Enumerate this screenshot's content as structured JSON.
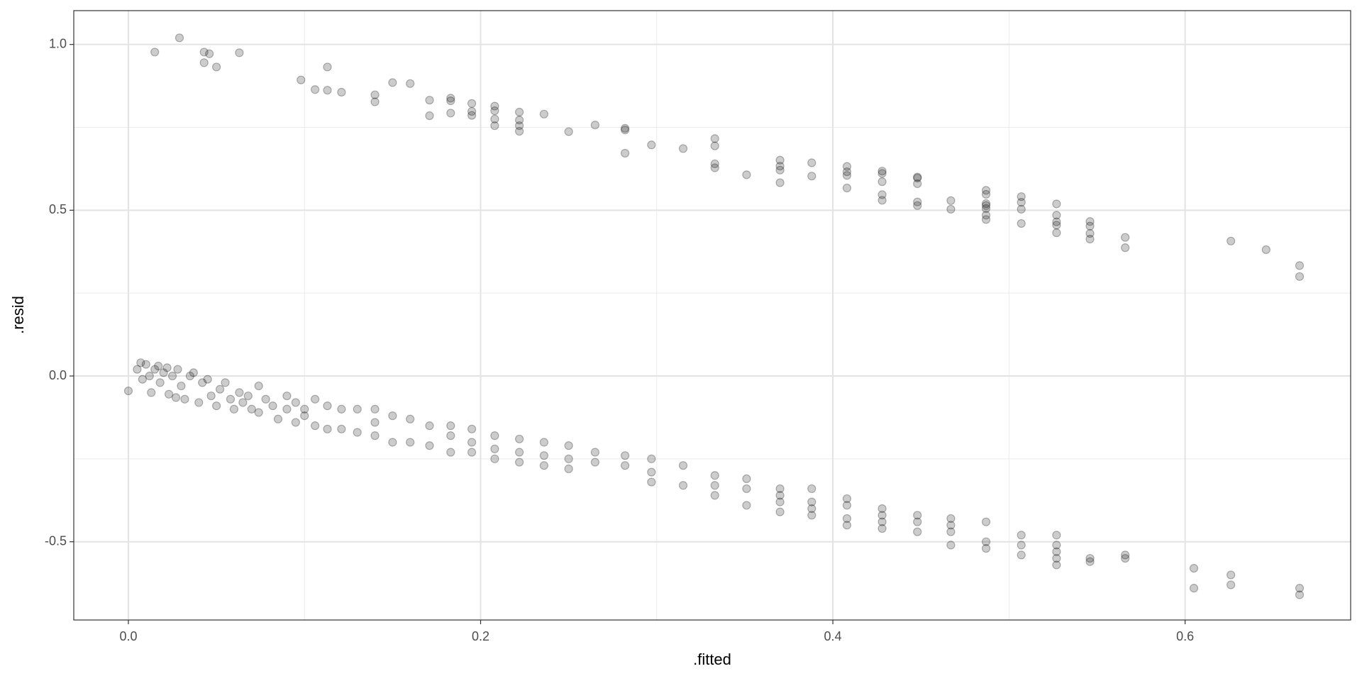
{
  "chart_data": {
    "type": "scatter",
    "x_label": ".fitted",
    "y_label": ".resid",
    "xlim": [
      -0.031,
      0.694
    ],
    "ylim": [
      -0.736,
      1.102
    ],
    "xticks": [
      {
        "value": 0,
        "label": "0.0"
      },
      0.2,
      0.4,
      0.6
    ],
    "yticks": [
      {
        "value": -0.5,
        "label": "-0.5"
      },
      {
        "value": 0,
        "label": "0.0"
      },
      0.5,
      {
        "value": 1,
        "label": "1.0"
      }
    ],
    "x_minor_ticks": [
      0.1,
      0.3,
      0.5
    ],
    "y_minor_ticks": [
      -0.25,
      0.25,
      0.75
    ],
    "grid": true,
    "color": "#000000",
    "x": [
      0.015,
      0.029,
      0.043,
      0.043,
      0.046,
      0.05,
      0.063,
      0.098,
      0.106,
      0.113,
      0.113,
      0.121,
      0.14,
      0.14,
      0.15,
      0.16,
      0.171,
      0.171,
      0.183,
      0.183,
      0.183,
      0.195,
      0.195,
      0.195,
      0.208,
      0.208,
      0.208,
      0.208,
      0.222,
      0.222,
      0.222,
      0.222,
      0.236,
      0.25,
      0.265,
      0.282,
      0.282,
      0.282,
      0.297,
      0.315,
      0.333,
      0.333,
      0.333,
      0.333,
      0.351,
      0.37,
      0.37,
      0.37,
      0.37,
      0.388,
      0.388,
      0.408,
      0.408,
      0.408,
      0.408,
      0.428,
      0.428,
      0.428,
      0.428,
      0.428,
      0.448,
      0.448,
      0.448,
      0.448,
      0.448,
      0.467,
      0.467,
      0.487,
      0.487,
      0.487,
      0.487,
      0.487,
      0.487,
      0.487,
      0.507,
      0.507,
      0.507,
      0.507,
      0.527,
      0.527,
      0.527,
      0.527,
      0.527,
      0.546,
      0.546,
      0.546,
      0.546,
      0.566,
      0.566,
      0.626,
      0.646,
      0.665,
      0.665,
      0,
      0.005,
      0.007,
      0.008,
      0.01,
      0.012,
      0.013,
      0.015,
      0.017,
      0.018,
      0.02,
      0.022,
      0.023,
      0.025,
      0.027,
      0.028,
      0.03,
      0.032,
      0.035,
      0.037,
      0.04,
      0.042,
      0.045,
      0.047,
      0.05,
      0.052,
      0.055,
      0.058,
      0.06,
      0.063,
      0.065,
      0.068,
      0.07,
      0.074,
      0.074,
      0.078,
      0.082,
      0.085,
      0.09,
      0.09,
      0.095,
      0.095,
      0.1,
      0.1,
      0.106,
      0.106,
      0.113,
      0.113,
      0.121,
      0.121,
      0.13,
      0.13,
      0.14,
      0.14,
      0.14,
      0.15,
      0.15,
      0.16,
      0.16,
      0.171,
      0.171,
      0.183,
      0.183,
      0.183,
      0.195,
      0.195,
      0.195,
      0.208,
      0.208,
      0.208,
      0.222,
      0.222,
      0.222,
      0.236,
      0.236,
      0.236,
      0.25,
      0.25,
      0.25,
      0.265,
      0.265,
      0.282,
      0.282,
      0.297,
      0.297,
      0.297,
      0.315,
      0.315,
      0.333,
      0.333,
      0.333,
      0.351,
      0.351,
      0.351,
      0.37,
      0.37,
      0.37,
      0.37,
      0.388,
      0.388,
      0.388,
      0.388,
      0.408,
      0.408,
      0.408,
      0.408,
      0.428,
      0.428,
      0.428,
      0.428,
      0.448,
      0.448,
      0.448,
      0.467,
      0.467,
      0.467,
      0.467,
      0.487,
      0.487,
      0.487,
      0.507,
      0.507,
      0.507,
      0.527,
      0.527,
      0.527,
      0.527,
      0.527,
      0.546,
      0.546,
      0.566,
      0.566,
      0.605,
      0.605,
      0.626,
      0.626,
      0.665,
      0.665
    ],
    "values": [
      0.977,
      1.02,
      0.977,
      0.945,
      0.972,
      0.932,
      0.975,
      0.893,
      0.864,
      0.932,
      0.862,
      0.856,
      0.848,
      0.827,
      0.885,
      0.882,
      0.832,
      0.785,
      0.838,
      0.83,
      0.793,
      0.822,
      0.798,
      0.786,
      0.814,
      0.8,
      0.775,
      0.755,
      0.796,
      0.772,
      0.755,
      0.738,
      0.79,
      0.737,
      0.757,
      0.747,
      0.742,
      0.672,
      0.697,
      0.686,
      0.716,
      0.694,
      0.64,
      0.628,
      0.607,
      0.651,
      0.633,
      0.621,
      0.583,
      0.643,
      0.603,
      0.632,
      0.616,
      0.605,
      0.567,
      0.618,
      0.611,
      0.586,
      0.547,
      0.53,
      0.6,
      0.597,
      0.58,
      0.525,
      0.514,
      0.529,
      0.503,
      0.56,
      0.548,
      0.52,
      0.514,
      0.505,
      0.485,
      0.472,
      0.541,
      0.524,
      0.503,
      0.46,
      0.519,
      0.485,
      0.465,
      0.455,
      0.432,
      0.466,
      0.452,
      0.43,
      0.413,
      0.418,
      0.387,
      0.407,
      0.381,
      0.333,
      0.3,
      -0.045,
      0.02,
      0.04,
      -0.01,
      0.035,
      0.0,
      -0.05,
      0.02,
      0.03,
      -0.02,
      0.01,
      0.025,
      -0.055,
      0.0,
      -0.065,
      0.02,
      -0.03,
      -0.07,
      0.0,
      0.01,
      -0.08,
      -0.02,
      -0.01,
      -0.06,
      -0.09,
      -0.04,
      -0.02,
      -0.07,
      -0.1,
      -0.05,
      -0.08,
      -0.06,
      -0.1,
      -0.03,
      -0.11,
      -0.07,
      -0.09,
      -0.13,
      -0.06,
      -0.1,
      -0.08,
      -0.14,
      -0.1,
      -0.12,
      -0.07,
      -0.15,
      -0.09,
      -0.16,
      -0.1,
      -0.16,
      -0.1,
      -0.17,
      -0.1,
      -0.14,
      -0.18,
      -0.12,
      -0.2,
      -0.13,
      -0.2,
      -0.15,
      -0.21,
      -0.15,
      -0.18,
      -0.23,
      -0.16,
      -0.2,
      -0.23,
      -0.18,
      -0.22,
      -0.25,
      -0.19,
      -0.23,
      -0.26,
      -0.2,
      -0.24,
      -0.27,
      -0.21,
      -0.25,
      -0.28,
      -0.23,
      -0.26,
      -0.24,
      -0.27,
      -0.25,
      -0.29,
      -0.32,
      -0.27,
      -0.33,
      -0.3,
      -0.33,
      -0.36,
      -0.31,
      -0.34,
      -0.39,
      -0.34,
      -0.36,
      -0.38,
      -0.41,
      -0.34,
      -0.38,
      -0.4,
      -0.42,
      -0.37,
      -0.39,
      -0.43,
      -0.45,
      -0.4,
      -0.42,
      -0.44,
      -0.46,
      -0.42,
      -0.44,
      -0.47,
      -0.43,
      -0.45,
      -0.47,
      -0.51,
      -0.44,
      -0.5,
      -0.52,
      -0.48,
      -0.51,
      -0.54,
      -0.48,
      -0.51,
      -0.53,
      -0.55,
      -0.57,
      -0.55,
      -0.56,
      -0.54,
      -0.55,
      -0.58,
      -0.64,
      -0.6,
      -0.63,
      -0.64,
      -0.66
    ]
  }
}
